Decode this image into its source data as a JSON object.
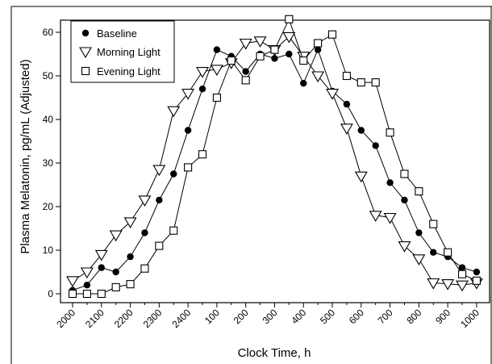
{
  "chart_data": {
    "type": "line",
    "xlabel": "Clock Time, h",
    "ylabel": "Plasma Melatonin, pg/mL (Adjusted)",
    "ylim": [
      0,
      60
    ],
    "yticks": [
      0,
      10,
      20,
      30,
      40,
      50,
      60
    ],
    "xtick_labels": [
      "2000",
      "2100",
      "2200",
      "2300",
      "2400",
      "100",
      "200",
      "300",
      "400",
      "500",
      "600",
      "700",
      "800",
      "900",
      "1000"
    ],
    "x_half_hours": [
      "2000",
      "2030",
      "2100",
      "2130",
      "2200",
      "2230",
      "2300",
      "2330",
      "2400",
      "0030",
      "100",
      "130",
      "200",
      "230",
      "300",
      "330",
      "400",
      "430",
      "500",
      "530",
      "600",
      "630",
      "700",
      "730",
      "800",
      "830",
      "900",
      "930",
      "1000"
    ],
    "legend_position": "top-left",
    "grid": false,
    "series": [
      {
        "name": "Baseline",
        "marker": "circle",
        "values": [
          0.8,
          2,
          6,
          5,
          8.5,
          14,
          21.5,
          27.5,
          37.5,
          47,
          56,
          54.5,
          51,
          55,
          54,
          55,
          48.3,
          56,
          46.5,
          43.5,
          37.5,
          34,
          25.5,
          21.5,
          14,
          9.5,
          8.5,
          6,
          5
        ]
      },
      {
        "name": "Morning Light",
        "marker": "triangle-down",
        "values": [
          3,
          5,
          9,
          13.5,
          16.5,
          21.5,
          28.5,
          42,
          46,
          51,
          51.5,
          53,
          57.5,
          58,
          56,
          59,
          54.5,
          50,
          46,
          38,
          27,
          18,
          17.5,
          11,
          8,
          2.5,
          2.3,
          2,
          2.5
        ]
      },
      {
        "name": "Evening Light",
        "marker": "square",
        "values": [
          0,
          0,
          0,
          1.5,
          2.2,
          5.8,
          11,
          14.5,
          29,
          32,
          45,
          53.5,
          49,
          54.5,
          56,
          63,
          53.5,
          57.5,
          59.5,
          50,
          48.5,
          48.5,
          37,
          27.5,
          23.5,
          16,
          9.5,
          4.5,
          3
        ]
      }
    ]
  }
}
